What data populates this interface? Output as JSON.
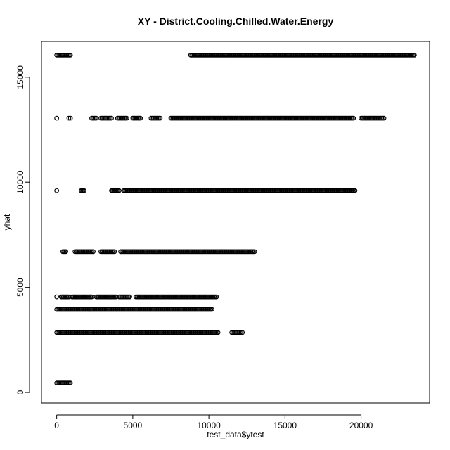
{
  "chart_data": {
    "type": "scatter",
    "title": "XY - District.Cooling.Chilled.Water.Energy",
    "xlabel": "test_data$ytest",
    "ylabel": "yhat",
    "xlim": [
      -1000,
      24500
    ],
    "ylim": [
      -500,
      16700
    ],
    "x_ticks": [
      0,
      5000,
      10000,
      15000,
      20000
    ],
    "y_ticks": [
      0,
      5000,
      10000,
      15000
    ],
    "grid": false,
    "legend": "none",
    "marker": "open-circle",
    "color": "#000000",
    "bands": [
      {
        "y": 16050,
        "segments": [
          [
            0,
            900
          ],
          [
            8800,
            23500
          ]
        ]
      },
      {
        "y": 13050,
        "segments": [
          [
            0,
            0
          ],
          [
            800,
            900
          ],
          [
            2300,
            2600
          ],
          [
            2900,
            3600
          ],
          [
            4000,
            4600
          ],
          [
            5000,
            5500
          ],
          [
            6200,
            6800
          ],
          [
            7500,
            19500
          ],
          [
            20000,
            21500
          ]
        ]
      },
      {
        "y": 9600,
        "segments": [
          [
            0,
            0
          ],
          [
            1600,
            1800
          ],
          [
            3600,
            4100
          ],
          [
            4400,
            19600
          ]
        ]
      },
      {
        "y": 6700,
        "segments": [
          [
            400,
            600
          ],
          [
            1200,
            2400
          ],
          [
            2900,
            3800
          ],
          [
            4200,
            13000
          ]
        ]
      },
      {
        "y": 4550,
        "segments": [
          [
            0,
            0
          ],
          [
            300,
            800
          ],
          [
            1000,
            2300
          ],
          [
            2600,
            3900
          ],
          [
            4100,
            4800
          ],
          [
            5200,
            10500
          ]
        ]
      },
      {
        "y": 3950,
        "segments": [
          [
            0,
            10200
          ]
        ]
      },
      {
        "y": 2850,
        "segments": [
          [
            0,
            10600
          ],
          [
            11500,
            12200
          ]
        ]
      },
      {
        "y": 450,
        "segments": [
          [
            0,
            900
          ]
        ]
      }
    ]
  }
}
